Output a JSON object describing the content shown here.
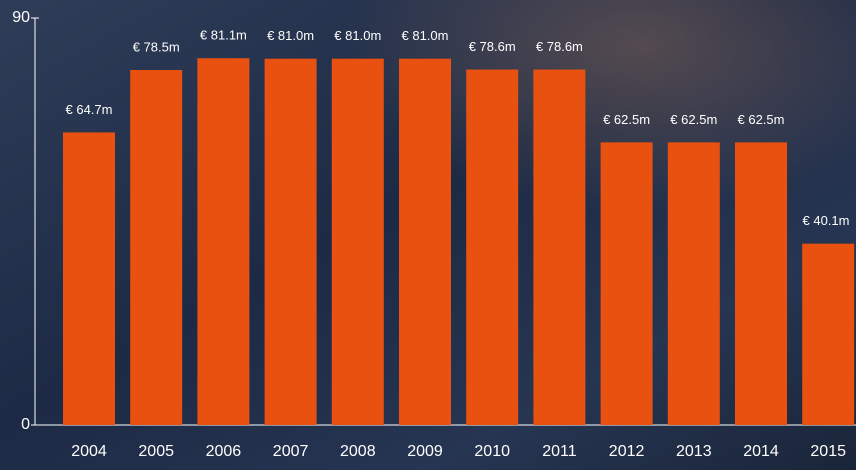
{
  "chart_data": {
    "type": "bar",
    "categories": [
      "2004",
      "2005",
      "2006",
      "2007",
      "2008",
      "2009",
      "2010",
      "2011",
      "2012",
      "2013",
      "2014",
      "2015"
    ],
    "values": [
      64.7,
      78.5,
      81.1,
      81.0,
      81.0,
      81.0,
      78.6,
      78.6,
      62.5,
      62.5,
      62.5,
      40.1
    ],
    "value_labels": [
      "€ 64.7m",
      "€ 78.5m",
      "€ 81.1m",
      "€ 81.0m",
      "€ 81.0m",
      "€ 81.0m",
      "€ 78.6m",
      "€ 78.6m",
      "€ 62.5m",
      "€ 62.5m",
      "€ 62.5m",
      "€ 40.1m"
    ],
    "color": "#e8510f",
    "ylim": [
      0,
      90
    ],
    "yticks": [
      0,
      90
    ],
    "grid": false
  }
}
